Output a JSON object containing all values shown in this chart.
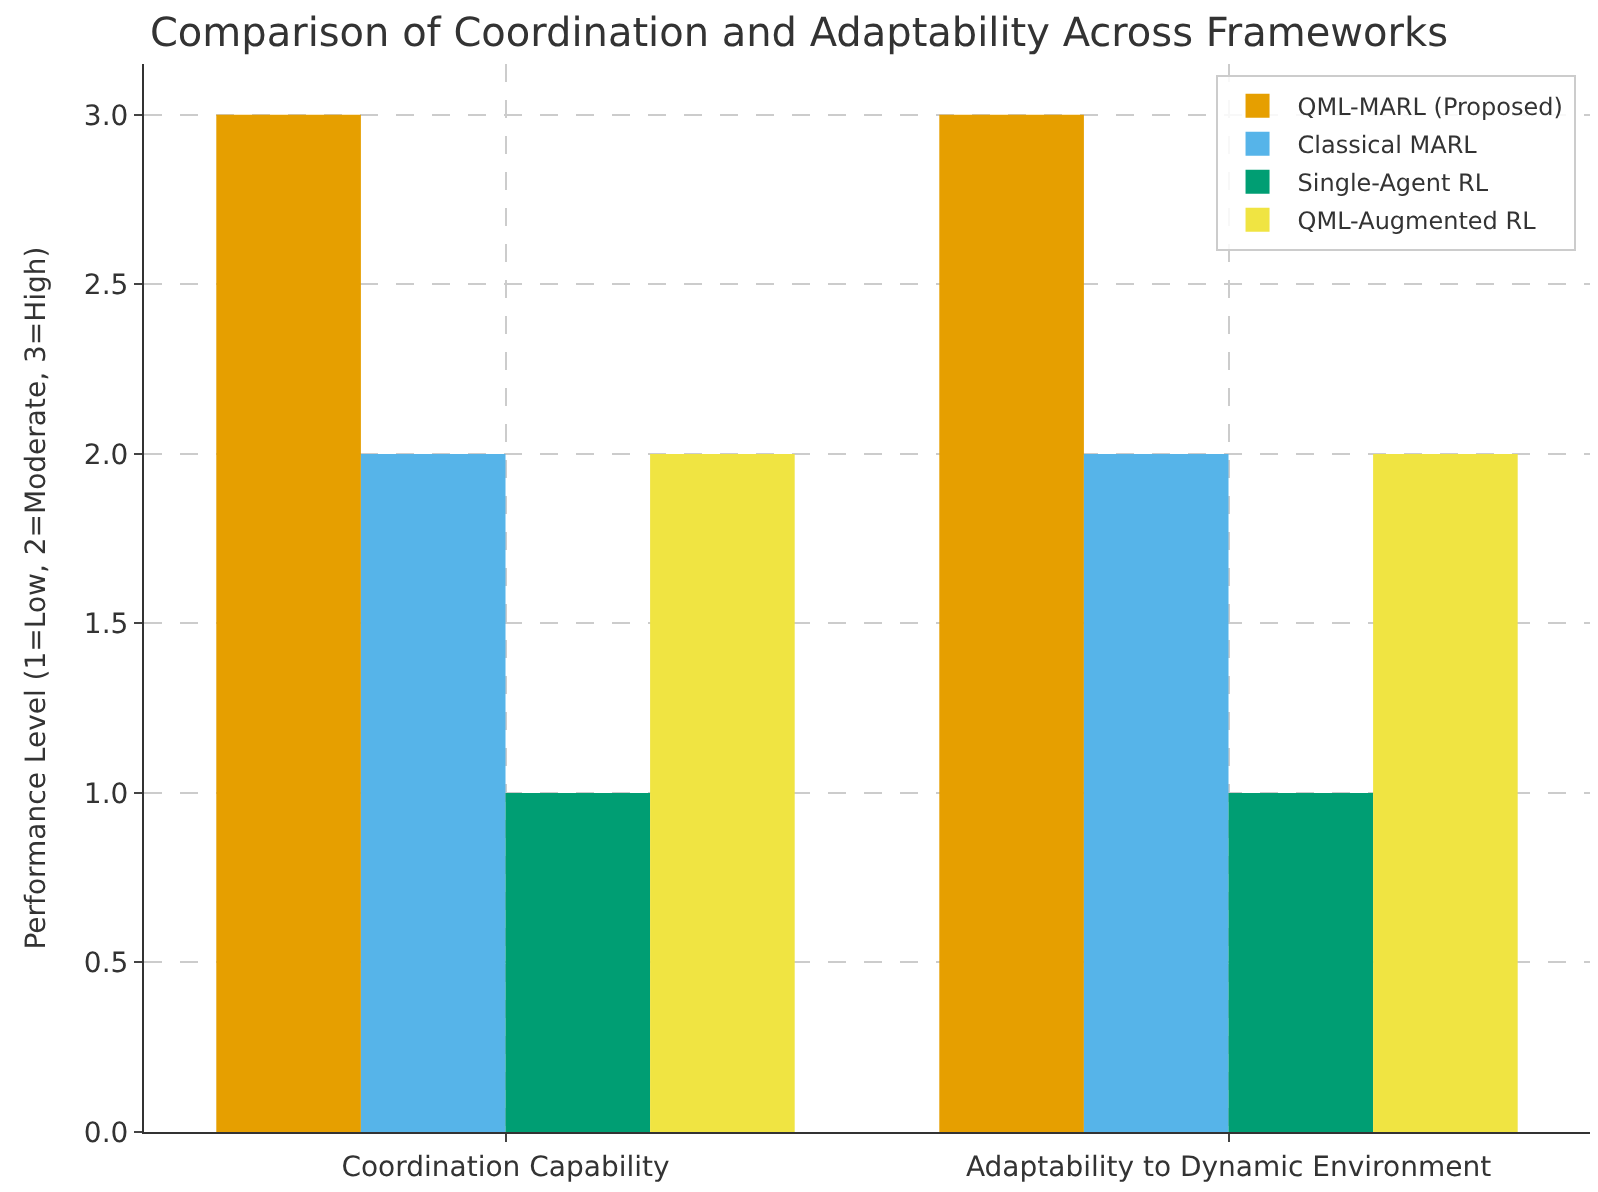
{
  "chart_data": {
    "type": "bar",
    "title": "Comparison of Coordination and Adaptability Across Frameworks",
    "ylabel": "Performance Level (1=Low, 2=Moderate, 3=High)",
    "categories": [
      "Coordination Capability",
      "Adaptability to Dynamic Environment"
    ],
    "series": [
      {
        "name": "QML-MARL (Proposed)",
        "color": "#e69f00",
        "values": [
          3,
          3
        ]
      },
      {
        "name": "Classical MARL",
        "color": "#56b4e9",
        "values": [
          2,
          2
        ]
      },
      {
        "name": "Single-Agent RL",
        "color": "#009e73",
        "values": [
          1,
          1
        ]
      },
      {
        "name": "QML-Augmented RL",
        "color": "#f0e442",
        "values": [
          2,
          2
        ]
      }
    ],
    "ylim": [
      0,
      3.15
    ],
    "yticks": [
      {
        "value": 0,
        "label": "0.0"
      },
      {
        "value": 0.5,
        "label": "0.5"
      },
      {
        "value": 1,
        "label": "1.0"
      },
      {
        "value": 1.5,
        "label": "1.5"
      },
      {
        "value": 2,
        "label": "2.0"
      },
      {
        "value": 2.5,
        "label": "2.5"
      },
      {
        "value": 3,
        "label": "3.0"
      }
    ],
    "grid": true,
    "legend": "top right"
  }
}
